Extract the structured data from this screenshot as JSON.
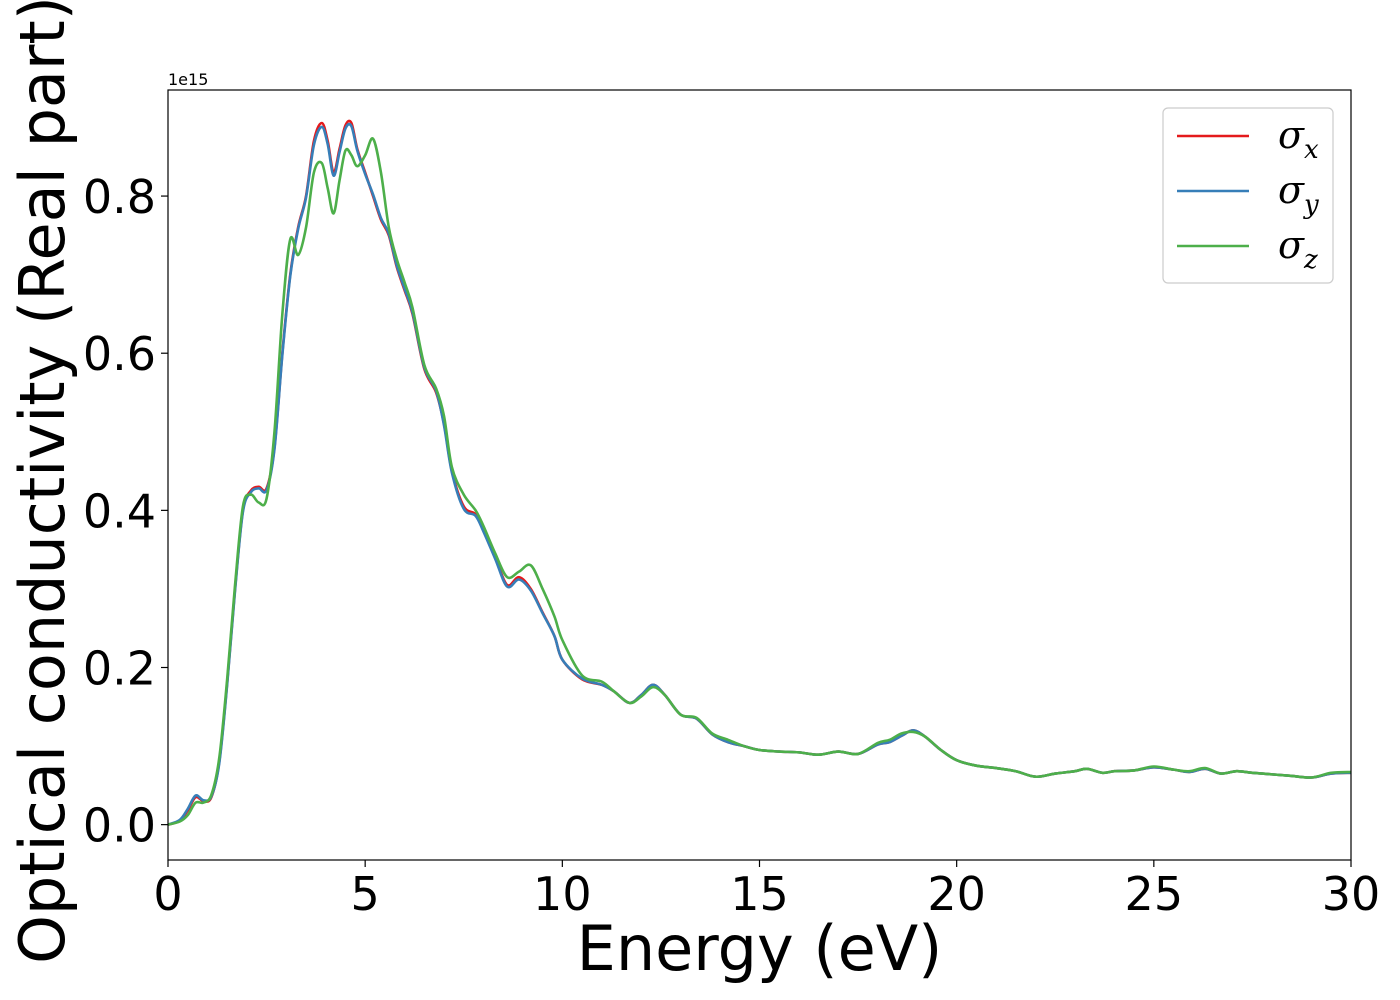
{
  "chart_data": {
    "type": "line",
    "xlabel": "Energy (eV)",
    "ylabel": "Optical conductivity (Real part)",
    "y_offset_label": "1e15",
    "xlim": [
      0,
      30
    ],
    "ylim": [
      -0.045,
      0.935
    ],
    "x_ticks": [
      0,
      5,
      10,
      15,
      20,
      25,
      30
    ],
    "x_tick_labels": [
      "0",
      "5",
      "10",
      "15",
      "20",
      "25",
      "30"
    ],
    "y_ticks": [
      0.0,
      0.2,
      0.4,
      0.6,
      0.8
    ],
    "y_tick_labels": [
      "0.0",
      "0.2",
      "0.4",
      "0.6",
      "0.8"
    ],
    "grid": false,
    "legend_position": "top-right",
    "x": [
      0,
      0.3,
      0.5,
      0.7,
      0.9,
      1.1,
      1.3,
      1.5,
      1.7,
      1.9,
      2.1,
      2.3,
      2.5,
      2.7,
      2.9,
      3.1,
      3.3,
      3.5,
      3.7,
      3.9,
      4.05,
      4.2,
      4.35,
      4.5,
      4.65,
      4.8,
      5.0,
      5.2,
      5.4,
      5.6,
      5.8,
      6.0,
      6.2,
      6.5,
      6.8,
      7.0,
      7.2,
      7.5,
      7.8,
      8.0,
      8.3,
      8.6,
      8.9,
      9.2,
      9.5,
      9.8,
      10.0,
      10.5,
      11.0,
      11.3,
      11.7,
      12.0,
      12.3,
      12.6,
      13.0,
      13.4,
      13.8,
      14.2,
      14.6,
      15.0,
      15.5,
      16.0,
      16.5,
      17.0,
      17.5,
      18.0,
      18.3,
      18.6,
      18.9,
      19.2,
      19.6,
      20.0,
      20.5,
      21.0,
      21.5,
      22.0,
      22.5,
      23.0,
      23.3,
      23.7,
      24.0,
      24.5,
      25.0,
      25.5,
      25.9,
      26.3,
      26.7,
      27.1,
      27.5,
      28.0,
      28.5,
      29.0,
      29.5,
      30.0
    ],
    "series": [
      {
        "name": "σx",
        "label_base": "σ",
        "label_sub": "x",
        "color": "#e41a1c",
        "values": [
          0.0,
          0.005,
          0.018,
          0.035,
          0.03,
          0.035,
          0.08,
          0.18,
          0.3,
          0.4,
          0.425,
          0.43,
          0.428,
          0.48,
          0.6,
          0.7,
          0.76,
          0.8,
          0.87,
          0.893,
          0.87,
          0.83,
          0.86,
          0.89,
          0.893,
          0.86,
          0.83,
          0.8,
          0.77,
          0.75,
          0.71,
          0.68,
          0.65,
          0.58,
          0.55,
          0.51,
          0.45,
          0.405,
          0.395,
          0.375,
          0.34,
          0.305,
          0.315,
          0.3,
          0.27,
          0.24,
          0.21,
          0.185,
          0.178,
          0.17,
          0.155,
          0.165,
          0.178,
          0.165,
          0.14,
          0.135,
          0.115,
          0.105,
          0.1,
          0.095,
          0.093,
          0.092,
          0.089,
          0.093,
          0.09,
          0.102,
          0.105,
          0.113,
          0.12,
          0.112,
          0.095,
          0.082,
          0.075,
          0.072,
          0.068,
          0.061,
          0.065,
          0.068,
          0.071,
          0.066,
          0.068,
          0.069,
          0.073,
          0.07,
          0.067,
          0.071,
          0.065,
          0.068,
          0.066,
          0.064,
          0.062,
          0.06,
          0.065,
          0.066
        ]
      },
      {
        "name": "σy",
        "label_base": "σ",
        "label_sub": "y",
        "color": "#377eb8",
        "values": [
          0.0,
          0.006,
          0.02,
          0.037,
          0.031,
          0.036,
          0.078,
          0.178,
          0.298,
          0.398,
          0.423,
          0.428,
          0.426,
          0.478,
          0.598,
          0.698,
          0.758,
          0.798,
          0.865,
          0.888,
          0.866,
          0.826,
          0.856,
          0.886,
          0.889,
          0.858,
          0.828,
          0.802,
          0.772,
          0.752,
          0.712,
          0.682,
          0.652,
          0.582,
          0.552,
          0.508,
          0.448,
          0.402,
          0.393,
          0.373,
          0.338,
          0.303,
          0.312,
          0.298,
          0.269,
          0.24,
          0.21,
          0.186,
          0.178,
          0.17,
          0.155,
          0.165,
          0.178,
          0.165,
          0.14,
          0.135,
          0.115,
          0.105,
          0.1,
          0.095,
          0.093,
          0.092,
          0.089,
          0.093,
          0.09,
          0.102,
          0.105,
          0.113,
          0.12,
          0.112,
          0.095,
          0.082,
          0.075,
          0.072,
          0.068,
          0.061,
          0.065,
          0.068,
          0.071,
          0.066,
          0.068,
          0.069,
          0.073,
          0.07,
          0.067,
          0.071,
          0.065,
          0.068,
          0.066,
          0.064,
          0.062,
          0.06,
          0.065,
          0.066
        ]
      },
      {
        "name": "σz",
        "label_base": "σ",
        "label_sub": "z",
        "color": "#4daf4a",
        "values": [
          0.0,
          0.004,
          0.012,
          0.028,
          0.028,
          0.038,
          0.085,
          0.185,
          0.305,
          0.405,
          0.42,
          0.41,
          0.415,
          0.5,
          0.65,
          0.745,
          0.725,
          0.76,
          0.83,
          0.842,
          0.81,
          0.778,
          0.82,
          0.858,
          0.852,
          0.838,
          0.852,
          0.873,
          0.83,
          0.76,
          0.72,
          0.69,
          0.658,
          0.585,
          0.555,
          0.52,
          0.455,
          0.42,
          0.4,
          0.38,
          0.345,
          0.315,
          0.322,
          0.33,
          0.3,
          0.265,
          0.235,
          0.19,
          0.182,
          0.17,
          0.155,
          0.163,
          0.175,
          0.165,
          0.14,
          0.136,
          0.116,
          0.108,
          0.1,
          0.095,
          0.093,
          0.092,
          0.089,
          0.093,
          0.09,
          0.104,
          0.108,
          0.116,
          0.118,
          0.112,
          0.095,
          0.082,
          0.075,
          0.072,
          0.068,
          0.061,
          0.065,
          0.068,
          0.071,
          0.066,
          0.068,
          0.069,
          0.074,
          0.07,
          0.068,
          0.072,
          0.065,
          0.068,
          0.066,
          0.064,
          0.062,
          0.06,
          0.066,
          0.067
        ]
      }
    ]
  }
}
